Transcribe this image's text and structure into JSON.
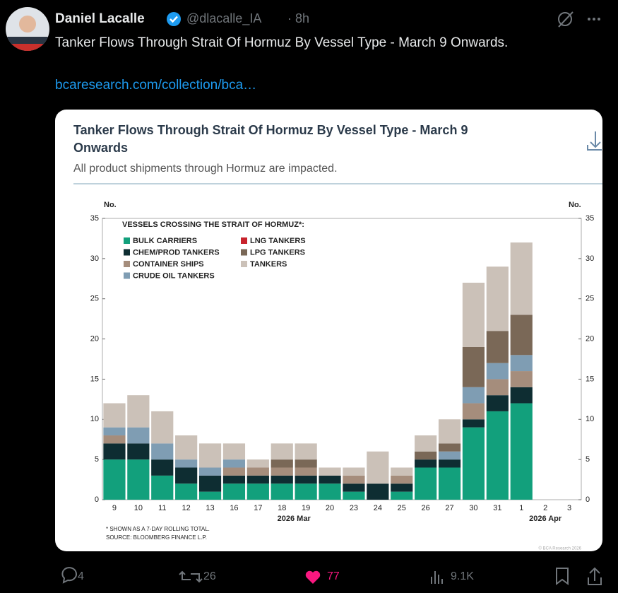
{
  "tweet": {
    "name": "Daniel Lacalle",
    "handle": "@dlacalle_IA",
    "separator": "·",
    "time": "8h",
    "text": "Tanker Flows Through Strait Of Hormuz By Vessel Type - March 9 Onwards.",
    "link": "bcaresearch.com/collection/bca…",
    "replies": "4",
    "reposts": "26",
    "likes": "77",
    "views": "9.1K"
  },
  "chart_data": {
    "type": "bar",
    "stacked": true,
    "title": "Tanker Flows Through Strait Of Hormuz By Vessel Type - March 9",
    "title_line2": "Onwards",
    "subtitle": "All product shipments through Hormuz are impacted.",
    "y_unit_left": "No.",
    "y_unit_right": "No.",
    "legend_title": "VESSELS CROSSING THE STRAIT OF HORMUZ*:",
    "categories": [
      "9",
      "10",
      "11",
      "12",
      "13",
      "16",
      "17",
      "18",
      "19",
      "20",
      "23",
      "24",
      "25",
      "26",
      "27",
      "30",
      "31",
      "1",
      "2",
      "3"
    ],
    "month_labels": [
      "2026 Mar",
      "2026 Apr"
    ],
    "series": [
      {
        "name": "BULK CARRIERS",
        "color": "#12a07c",
        "values": [
          5,
          5,
          3,
          2,
          1,
          2,
          2,
          2,
          2,
          2,
          1,
          0,
          1,
          4,
          4,
          9,
          11,
          12,
          0,
          0
        ]
      },
      {
        "name": "CHEM/PROD TANKERS",
        "color": "#0e2d32",
        "values": [
          2,
          2,
          2,
          2,
          2,
          1,
          1,
          1,
          1,
          1,
          1,
          2,
          1,
          1,
          1,
          1,
          2,
          2,
          0,
          0
        ]
      },
      {
        "name": "CONTAINER SHIPS",
        "color": "#a58d7c",
        "values": [
          1,
          0,
          0,
          0,
          0,
          1,
          1,
          1,
          1,
          0,
          1,
          0,
          1,
          0,
          0,
          2,
          2,
          2,
          0,
          0
        ]
      },
      {
        "name": "CRUDE OIL TANKERS",
        "color": "#7f9db3",
        "values": [
          1,
          2,
          2,
          1,
          1,
          1,
          0,
          0,
          0,
          0,
          0,
          0,
          0,
          0,
          1,
          2,
          2,
          2,
          0,
          0
        ]
      },
      {
        "name": "LNG TANKERS",
        "color": "#c8232c",
        "values": [
          0,
          0,
          0,
          0,
          0,
          0,
          0,
          0,
          0,
          0,
          0,
          0,
          0,
          0,
          0,
          0,
          0,
          0,
          0,
          0
        ]
      },
      {
        "name": "LPG TANKERS",
        "color": "#7a6857",
        "values": [
          0,
          0,
          0,
          0,
          0,
          0,
          0,
          1,
          1,
          0,
          0,
          0,
          0,
          1,
          1,
          5,
          4,
          5,
          0,
          0
        ]
      },
      {
        "name": "TANKERS",
        "color": "#cbc1b8",
        "values": [
          3,
          4,
          4,
          3,
          3,
          2,
          1,
          2,
          2,
          1,
          1,
          4,
          1,
          2,
          3,
          8,
          8,
          9,
          0,
          0
        ]
      }
    ],
    "ylim": [
      0,
      35
    ],
    "yticks": [
      0,
      5,
      10,
      15,
      20,
      25,
      30,
      35
    ],
    "footnote1": "* SHOWN AS A 7-DAY ROLLING TOTAL.",
    "footnote2": "SOURCE: BLOOMBERG FINANCE L.P.",
    "watermark": "© BCA Research 2026"
  }
}
